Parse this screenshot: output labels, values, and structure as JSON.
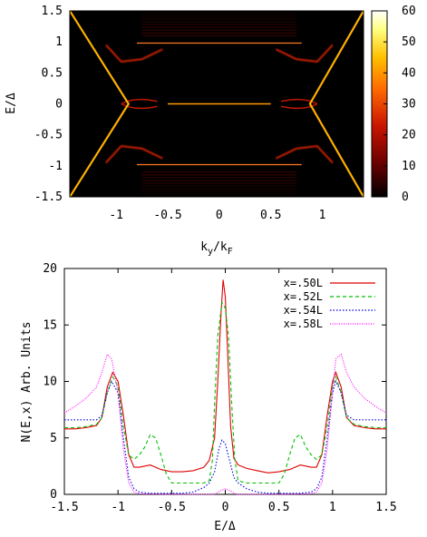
{
  "chart_data": [
    {
      "type": "heatmap",
      "xlabel": "k",
      "xlabel_sub": "y",
      "xlabel_tail": "/k",
      "xlabel_sub2": "F",
      "ylabel": "E/Δ",
      "xlim": [
        -1.45,
        1.4
      ],
      "ylim": [
        -1.5,
        1.5
      ],
      "x_ticks": [
        -1,
        -0.5,
        0,
        0.5,
        1
      ],
      "x_tick_labels": [
        "-1",
        "-0.5",
        "0",
        "0.5",
        "1"
      ],
      "y_ticks": [
        1.5,
        1,
        0.5,
        0,
        -0.5,
        -1,
        -1.5
      ],
      "y_tick_labels": [
        "1.5",
        "1",
        "0.5",
        "0",
        "-0.5",
        "-1",
        "-1.5"
      ],
      "colorbar": {
        "range": [
          0,
          60
        ],
        "ticks": [
          60,
          50,
          40,
          30,
          20,
          10,
          0
        ],
        "tick_labels": [
          "60",
          "50",
          "40",
          "30",
          "20",
          "10",
          "0"
        ],
        "colors": [
          "#000000",
          "#6a0000",
          "#c81400",
          "#ff6a00",
          "#ffc000",
          "#ffff80",
          "#ffffff"
        ]
      },
      "features": {
        "flat_bands_E": [
          0.98,
          -0.98
        ],
        "zero_mode_E": 0,
        "bound_state_points": [
          {
            "k": -1.1,
            "E": 0.95
          },
          {
            "k": -0.95,
            "E": 0.68
          },
          {
            "k": -0.75,
            "E": 0.72
          },
          {
            "k": -0.55,
            "E": 0.88
          },
          {
            "k": 0.55,
            "E": 0.88
          },
          {
            "k": 0.75,
            "E": 0.72
          },
          {
            "k": 0.95,
            "E": 0.68
          },
          {
            "k": 1.1,
            "E": 0.95
          }
        ],
        "edge_state_points": [
          {
            "k": -1.45,
            "E": 1.5
          },
          {
            "k": -0.88,
            "E": 0
          },
          {
            "k": -1.45,
            "E": -1.5
          },
          {
            "k": 1.4,
            "E": 1.5
          },
          {
            "k": 0.88,
            "E": 0
          },
          {
            "k": 1.4,
            "E": -1.5
          }
        ]
      }
    },
    {
      "type": "line",
      "xlabel": "E/Δ",
      "ylabel": "N(E,x) Arb. Units",
      "xlim": [
        -1.5,
        1.5
      ],
      "ylim": [
        0,
        20
      ],
      "x_ticks": [
        -1.5,
        -1,
        -0.5,
        0,
        0.5,
        1,
        1.5
      ],
      "x_tick_labels": [
        "-1.5",
        "-1",
        "-0.5",
        "0",
        "0.5",
        "1",
        "1.5"
      ],
      "y_ticks": [
        0,
        5,
        10,
        15,
        20
      ],
      "y_tick_labels": [
        "0",
        "5",
        "10",
        "15",
        "20"
      ],
      "legend_position": "top-right",
      "series": [
        {
          "name": "x=.50L",
          "color": "#e00000",
          "dash": "",
          "points": [
            [
              -1.5,
              5.8
            ],
            [
              -1.4,
              5.8
            ],
            [
              -1.3,
              5.9
            ],
            [
              -1.2,
              6.1
            ],
            [
              -1.15,
              6.8
            ],
            [
              -1.1,
              9.5
            ],
            [
              -1.05,
              10.8
            ],
            [
              -1.0,
              10.0
            ],
            [
              -0.95,
              7.0
            ],
            [
              -0.9,
              3.5
            ],
            [
              -0.85,
              2.4
            ],
            [
              -0.8,
              2.4
            ],
            [
              -0.7,
              2.6
            ],
            [
              -0.6,
              2.2
            ],
            [
              -0.5,
              2.0
            ],
            [
              -0.4,
              2.0
            ],
            [
              -0.3,
              2.1
            ],
            [
              -0.2,
              2.4
            ],
            [
              -0.15,
              3.0
            ],
            [
              -0.1,
              5.0
            ],
            [
              -0.07,
              10.0
            ],
            [
              -0.04,
              16.0
            ],
            [
              -0.02,
              19.0
            ],
            [
              0.0,
              17.5
            ],
            [
              0.02,
              13.0
            ],
            [
              0.05,
              6.0
            ],
            [
              0.08,
              3.2
            ],
            [
              0.12,
              2.6
            ],
            [
              0.2,
              2.3
            ],
            [
              0.3,
              2.1
            ],
            [
              0.4,
              1.9
            ],
            [
              0.5,
              2.0
            ],
            [
              0.6,
              2.2
            ],
            [
              0.7,
              2.6
            ],
            [
              0.8,
              2.4
            ],
            [
              0.85,
              2.4
            ],
            [
              0.9,
              3.5
            ],
            [
              0.95,
              7.0
            ],
            [
              1.0,
              10.0
            ],
            [
              1.03,
              10.8
            ],
            [
              1.08,
              9.5
            ],
            [
              1.13,
              6.8
            ],
            [
              1.2,
              6.1
            ],
            [
              1.3,
              5.9
            ],
            [
              1.4,
              5.8
            ],
            [
              1.5,
              5.8
            ]
          ]
        },
        {
          "name": "x=.52L",
          "color": "#00c000",
          "dash": "4,3",
          "points": [
            [
              -1.5,
              5.9
            ],
            [
              -1.4,
              5.9
            ],
            [
              -1.3,
              6.0
            ],
            [
              -1.2,
              6.2
            ],
            [
              -1.15,
              6.8
            ],
            [
              -1.1,
              9.0
            ],
            [
              -1.05,
              10.4
            ],
            [
              -1.0,
              9.6
            ],
            [
              -0.95,
              6.0
            ],
            [
              -0.9,
              3.5
            ],
            [
              -0.85,
              3.1
            ],
            [
              -0.8,
              3.5
            ],
            [
              -0.75,
              4.2
            ],
            [
              -0.7,
              5.3
            ],
            [
              -0.65,
              5.0
            ],
            [
              -0.6,
              3.5
            ],
            [
              -0.55,
              1.8
            ],
            [
              -0.5,
              1.0
            ],
            [
              -0.4,
              1.0
            ],
            [
              -0.3,
              1.0
            ],
            [
              -0.2,
              1.0
            ],
            [
              -0.15,
              1.2
            ],
            [
              -0.12,
              3.0
            ],
            [
              -0.1,
              8.0
            ],
            [
              -0.07,
              14.0
            ],
            [
              -0.03,
              17.0
            ],
            [
              0.0,
              16.5
            ],
            [
              0.03,
              14.0
            ],
            [
              0.06,
              8.0
            ],
            [
              0.09,
              3.0
            ],
            [
              0.12,
              1.2
            ],
            [
              0.2,
              1.0
            ],
            [
              0.3,
              1.0
            ],
            [
              0.4,
              1.0
            ],
            [
              0.5,
              1.0
            ],
            [
              0.55,
              1.8
            ],
            [
              0.6,
              3.5
            ],
            [
              0.65,
              5.0
            ],
            [
              0.7,
              5.3
            ],
            [
              0.75,
              4.2
            ],
            [
              0.8,
              3.5
            ],
            [
              0.85,
              3.1
            ],
            [
              0.9,
              3.5
            ],
            [
              0.95,
              6.0
            ],
            [
              1.0,
              9.6
            ],
            [
              1.03,
              10.4
            ],
            [
              1.08,
              9.0
            ],
            [
              1.13,
              6.8
            ],
            [
              1.2,
              6.2
            ],
            [
              1.3,
              6.0
            ],
            [
              1.4,
              5.9
            ],
            [
              1.5,
              5.9
            ]
          ]
        },
        {
          "name": "x=.54L",
          "color": "#0000e0",
          "dash": "1.5,2",
          "points": [
            [
              -1.5,
              6.6
            ],
            [
              -1.4,
              6.6
            ],
            [
              -1.3,
              6.6
            ],
            [
              -1.2,
              6.6
            ],
            [
              -1.15,
              7.0
            ],
            [
              -1.1,
              9.0
            ],
            [
              -1.06,
              10.0
            ],
            [
              -1.0,
              9.0
            ],
            [
              -0.95,
              5.0
            ],
            [
              -0.9,
              1.5
            ],
            [
              -0.85,
              0.5
            ],
            [
              -0.8,
              0.2
            ],
            [
              -0.7,
              0.1
            ],
            [
              -0.5,
              0.1
            ],
            [
              -0.4,
              0.1
            ],
            [
              -0.3,
              0.2
            ],
            [
              -0.2,
              0.6
            ],
            [
              -0.15,
              1.0
            ],
            [
              -0.1,
              2.0
            ],
            [
              -0.06,
              4.0
            ],
            [
              -0.03,
              4.8
            ],
            [
              0.0,
              4.5
            ],
            [
              0.04,
              3.0
            ],
            [
              0.08,
              1.5
            ],
            [
              0.12,
              1.0
            ],
            [
              0.2,
              0.5
            ],
            [
              0.3,
              0.2
            ],
            [
              0.4,
              0.1
            ],
            [
              0.5,
              0.1
            ],
            [
              0.7,
              0.1
            ],
            [
              0.8,
              0.2
            ],
            [
              0.85,
              0.5
            ],
            [
              0.9,
              1.5
            ],
            [
              0.95,
              5.0
            ],
            [
              1.0,
              9.0
            ],
            [
              1.03,
              10.0
            ],
            [
              1.08,
              9.0
            ],
            [
              1.13,
              7.0
            ],
            [
              1.2,
              6.6
            ],
            [
              1.3,
              6.6
            ],
            [
              1.4,
              6.6
            ],
            [
              1.5,
              6.6
            ]
          ]
        },
        {
          "name": "x=.58L",
          "color": "#ff00ff",
          "dash": "1,1.5",
          "points": [
            [
              -1.5,
              7.2
            ],
            [
              -1.4,
              7.8
            ],
            [
              -1.3,
              8.5
            ],
            [
              -1.2,
              9.5
            ],
            [
              -1.15,
              10.8
            ],
            [
              -1.1,
              12.4
            ],
            [
              -1.06,
              12.0
            ],
            [
              -1.0,
              9.0
            ],
            [
              -0.95,
              4.0
            ],
            [
              -0.9,
              1.0
            ],
            [
              -0.85,
              0.2
            ],
            [
              -0.8,
              0.05
            ],
            [
              -0.5,
              0.0
            ],
            [
              -0.1,
              0.0
            ],
            [
              -0.05,
              0.3
            ],
            [
              0.0,
              0.5
            ],
            [
              0.05,
              0.3
            ],
            [
              0.1,
              0.0
            ],
            [
              0.5,
              0.0
            ],
            [
              0.8,
              0.05
            ],
            [
              0.85,
              0.2
            ],
            [
              0.9,
              1.0
            ],
            [
              0.95,
              4.0
            ],
            [
              1.0,
              9.0
            ],
            [
              1.03,
              12.0
            ],
            [
              1.08,
              12.4
            ],
            [
              1.13,
              10.8
            ],
            [
              1.2,
              9.5
            ],
            [
              1.3,
              8.5
            ],
            [
              1.4,
              7.8
            ],
            [
              1.5,
              7.2
            ]
          ]
        }
      ]
    }
  ]
}
